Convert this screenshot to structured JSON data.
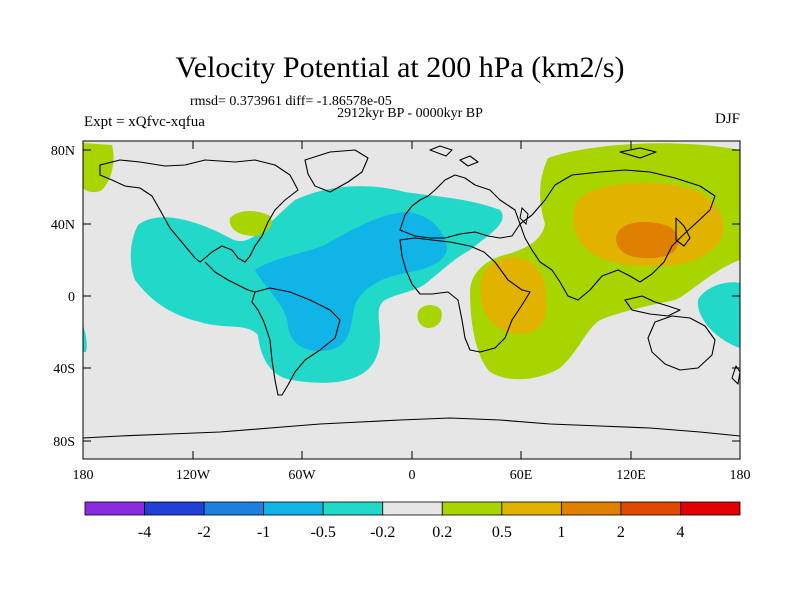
{
  "title": "Velocity Potential at 200 hPa (km2/s)",
  "stats": "rmsd= 0.373961  diff= -1.86578e-05",
  "period": "2912kyr BP - 0000kyr BP",
  "experiment": "Expt = xQfvc-xqfua",
  "season": "DJF",
  "map": {
    "lat_labels": [
      "80N",
      "40N",
      "0",
      "40S",
      "80S"
    ],
    "lon_labels": [
      "180",
      "120W",
      "60W",
      "0",
      "60E",
      "120E",
      "180"
    ],
    "background_color": "#e6e6e6",
    "coast_color": "#000000"
  },
  "colorbar": {
    "labels": [
      "-4",
      "-2",
      "-1",
      "-0.5",
      "-0.2",
      "0.2",
      "0.5",
      "1",
      "2",
      "4"
    ],
    "colors": [
      "#8a2be2",
      "#1f3fd6",
      "#1f7fe0",
      "#10b4e6",
      "#22d8c8",
      "#e6e6e6",
      "#a8d400",
      "#e2b200",
      "#e08000",
      "#e04a00",
      "#e00000"
    ]
  },
  "chart_data": {
    "type": "heatmap",
    "title": "Velocity Potential at 200 hPa (km2/s)",
    "variable": "velocity potential",
    "units": "km2/s",
    "level": "200 hPa",
    "season": "DJF",
    "x_range": [
      -180,
      180
    ],
    "y_range": [
      -90,
      90
    ],
    "x_ticks": [
      -180,
      -120,
      -60,
      0,
      60,
      120,
      180
    ],
    "y_ticks": [
      80,
      40,
      0,
      -40,
      -80
    ],
    "contour_levels": [
      -4,
      -2,
      -1,
      -0.5,
      -0.2,
      0.2,
      0.5,
      1,
      2,
      4
    ],
    "features": [
      {
        "name": "Atlantic negative centre",
        "lon": -5,
        "lat": 25,
        "value_range": "-1 to -0.5"
      },
      {
        "name": "South America negative lobe",
        "lon": -45,
        "lat": -15,
        "value_range": "-1 to -0.5"
      },
      {
        "name": "East Asia positive centre",
        "lon": 120,
        "lat": 35,
        "value_range": "1 to 2"
      },
      {
        "name": "Africa / Indian Ocean positive lobe",
        "lon": 50,
        "lat": 0,
        "value_range": "0.5 to 1"
      }
    ]
  }
}
